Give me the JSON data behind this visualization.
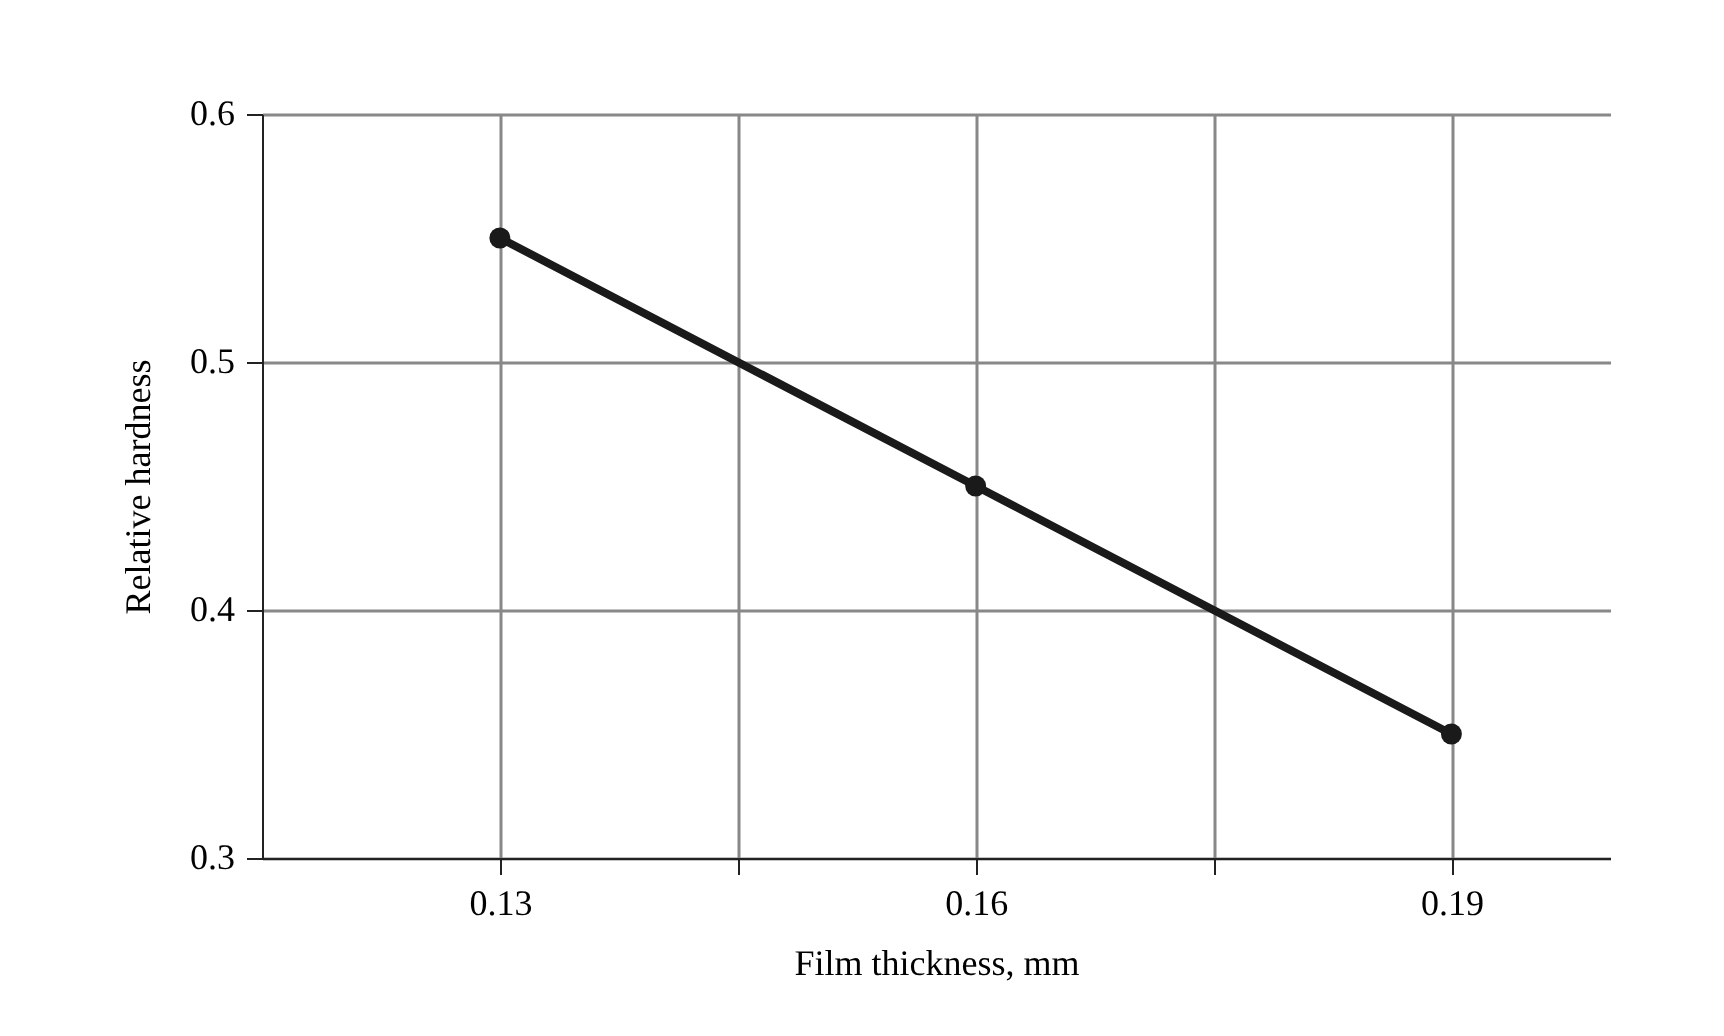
{
  "chart_data": {
    "type": "line",
    "xlabel": "Film thickness, mm",
    "ylabel": "Relative hardness",
    "x": [
      0.13,
      0.16,
      0.19
    ],
    "series": [
      {
        "color": "#1a1a1a",
        "values": [
          0.55,
          0.45,
          0.35
        ]
      }
    ],
    "xlim": [
      0.115,
      0.2
    ],
    "xticks": [
      0.13,
      {
        "value": 0.145,
        "label": null
      },
      0.16,
      {
        "value": 0.175,
        "label": null
      },
      0.19
    ],
    "ylim": [
      0.3,
      0.6
    ],
    "yticks": [
      0.3,
      0.4,
      0.5,
      0.6
    ],
    "grid": true,
    "marker": "circle",
    "line_style": "solid"
  }
}
